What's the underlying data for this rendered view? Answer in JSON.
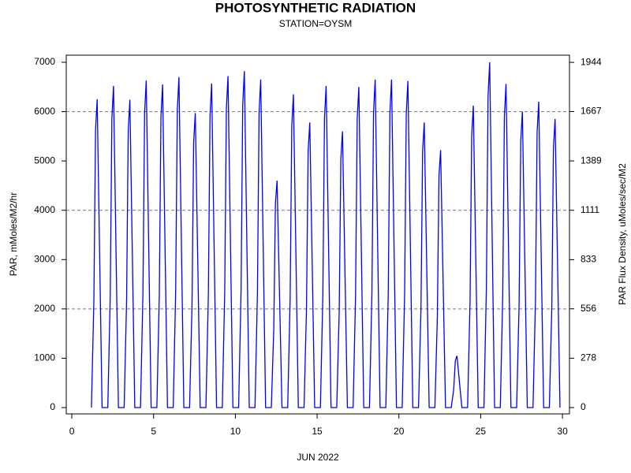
{
  "chart_data": {
    "type": "line",
    "title": "PHOTOSYNTHETIC RADIATION",
    "subtitle": "STATION=OYSM",
    "x_label": "JUN 2022",
    "y_label": "PAR, mMoles/M2/hr",
    "y2_label": "PAR Flux Density, uMoles/sec/M2",
    "xlim": [
      -0.34,
      30.43
    ],
    "xticks": [
      0,
      5,
      10,
      15,
      20,
      25,
      30
    ],
    "ylim": [
      -128,
      7144
    ],
    "yticks": [
      0,
      1000,
      2000,
      3000,
      4000,
      5000,
      6000,
      7000
    ],
    "y2lim": [
      -35.6,
      1984.4
    ],
    "y2ticks": [
      0,
      278,
      556,
      833,
      1111,
      1389,
      1667,
      1944
    ],
    "grid_y": [
      2000,
      4000,
      6000
    ],
    "x": [
      1.2,
      1.35,
      1.45,
      1.55,
      1.7,
      1.85,
      2.2,
      2.35,
      2.45,
      2.55,
      2.7,
      2.85,
      3.2,
      3.35,
      3.45,
      3.55,
      3.7,
      3.85,
      4.2,
      4.35,
      4.45,
      4.55,
      4.7,
      4.85,
      5.2,
      5.35,
      5.45,
      5.55,
      5.7,
      5.85,
      6.2,
      6.35,
      6.45,
      6.55,
      6.7,
      6.85,
      7.2,
      7.35,
      7.45,
      7.55,
      7.7,
      7.85,
      8.2,
      8.35,
      8.45,
      8.55,
      8.7,
      8.85,
      9.2,
      9.35,
      9.45,
      9.55,
      9.7,
      9.85,
      10.2,
      10.35,
      10.45,
      10.55,
      10.7,
      10.85,
      11.2,
      11.35,
      11.45,
      11.55,
      11.7,
      11.85,
      12.2,
      12.35,
      12.45,
      12.55,
      12.7,
      12.85,
      13.2,
      13.35,
      13.45,
      13.55,
      13.7,
      13.85,
      14.2,
      14.35,
      14.45,
      14.55,
      14.7,
      14.85,
      15.2,
      15.35,
      15.45,
      15.55,
      15.7,
      15.85,
      16.2,
      16.35,
      16.45,
      16.55,
      16.7,
      16.85,
      17.2,
      17.35,
      17.45,
      17.55,
      17.7,
      17.85,
      18.2,
      18.35,
      18.45,
      18.55,
      18.7,
      18.85,
      19.2,
      19.35,
      19.45,
      19.55,
      19.7,
      19.85,
      20.2,
      20.35,
      20.45,
      20.55,
      20.7,
      20.85,
      21.2,
      21.35,
      21.45,
      21.55,
      21.7,
      21.85,
      22.2,
      22.35,
      22.45,
      22.55,
      22.7,
      22.85,
      23.2,
      23.35,
      23.45,
      23.55,
      23.7,
      23.85,
      24.2,
      24.35,
      24.45,
      24.55,
      24.7,
      24.85,
      25.2,
      25.35,
      25.45,
      25.55,
      25.7,
      25.85,
      26.2,
      26.35,
      26.45,
      26.55,
      26.7,
      26.85,
      27.2,
      27.35,
      27.45,
      27.55,
      27.7,
      27.85,
      28.2,
      28.35,
      28.45,
      28.55,
      28.7,
      28.85,
      29.2,
      29.35,
      29.45,
      29.55,
      29.7,
      29.85
    ],
    "series": [
      {
        "name": "PAR",
        "color": "#0000ff",
        "values": [
          0,
          2188,
          5625,
          6250,
          3125,
          0,
          0,
          2282,
          5868,
          6520,
          3260,
          0,
          0,
          2184,
          5616,
          6240,
          3120,
          0,
          0,
          2321,
          5967,
          6630,
          3315,
          0,
          0,
          2293,
          5895,
          6550,
          3275,
          0,
          0,
          2345,
          6030,
          6700,
          3350,
          0,
          0,
          2090,
          5373,
          5970,
          2985,
          0,
          0,
          2300,
          5913,
          6570,
          3285,
          0,
          0,
          2352,
          6048,
          6720,
          3360,
          0,
          0,
          2387,
          6138,
          6820,
          3410,
          0,
          0,
          2328,
          5985,
          6650,
          3325,
          0,
          0,
          1610,
          4140,
          4600,
          2300,
          0,
          0,
          2223,
          5715,
          6350,
          3175,
          0,
          0,
          2023,
          5202,
          5780,
          2890,
          0,
          0,
          2282,
          5868,
          6520,
          3260,
          0,
          0,
          1960,
          5040,
          5600,
          2800,
          0,
          0,
          2275,
          5850,
          6500,
          3250,
          0,
          0,
          2328,
          5985,
          6650,
          3325,
          0,
          0,
          2328,
          5985,
          6650,
          3325,
          0,
          0,
          2317,
          5958,
          6620,
          3310,
          0,
          0,
          2023,
          5202,
          5780,
          2890,
          0,
          0,
          1827,
          4698,
          5220,
          2610,
          0,
          0,
          368,
          945,
          1050,
          525,
          0,
          0,
          2142,
          5508,
          6120,
          3060,
          0,
          0,
          2450,
          6300,
          7000,
          3500,
          0,
          0,
          2296,
          5904,
          6560,
          3280,
          0,
          0,
          2100,
          5400,
          6000,
          3000,
          0,
          0,
          2170,
          5580,
          6200,
          3100,
          0,
          0,
          2048,
          5265,
          5850,
          2925,
          0
        ]
      }
    ]
  }
}
